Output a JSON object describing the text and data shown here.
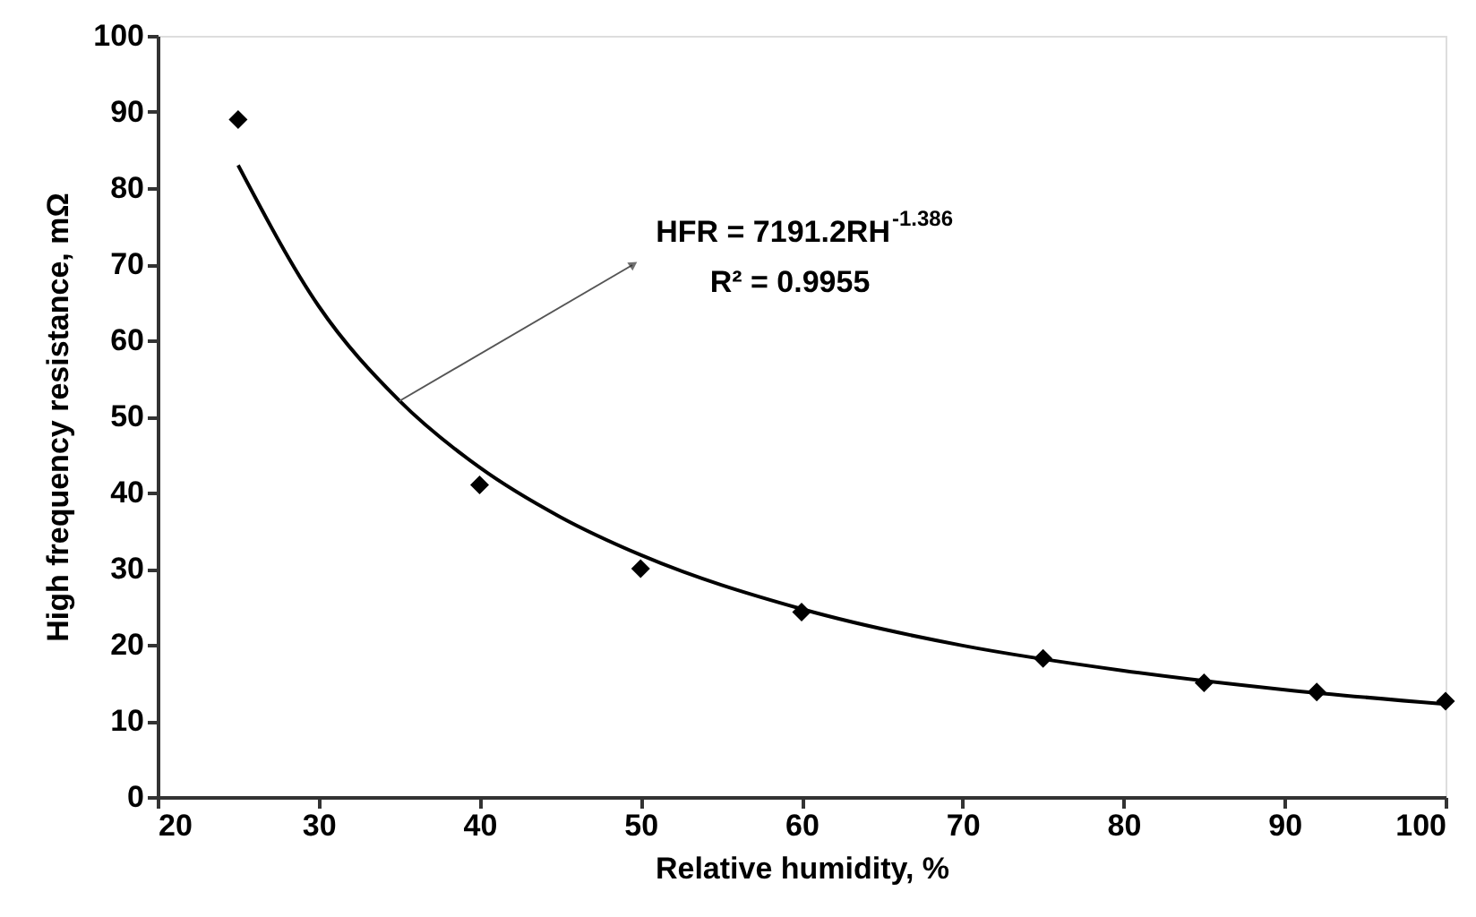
{
  "chart_data": {
    "type": "scatter",
    "xlabel": "Relative humidity, %",
    "ylabel": "High frequency resistance, mΩ",
    "xlim": [
      20,
      100
    ],
    "xticks": [
      20,
      30,
      40,
      50,
      60,
      70,
      80,
      90,
      100
    ],
    "ylim": [
      0,
      100
    ],
    "yticks": [
      0,
      10,
      20,
      30,
      40,
      50,
      60,
      70,
      80,
      90,
      100
    ],
    "grid": false,
    "series": [
      {
        "color": "#000000",
        "marker": "diamond",
        "x": [
          25,
          40,
          50,
          60,
          75,
          85,
          92,
          100
        ],
        "values": [
          89,
          41,
          30,
          24.3,
          18.2,
          15,
          13.8,
          12.6
        ]
      },
      {
        "type": "line",
        "color": "#000000",
        "line_style": "solid",
        "marker": "none",
        "x": [
          25,
          30,
          35,
          40,
          45,
          50,
          60,
          70,
          80,
          90,
          100
        ],
        "values": [
          83.0,
          64.5,
          52.1,
          43.3,
          36.8,
          31.8,
          24.7,
          19.9,
          16.6,
          14.1,
          12.2
        ]
      }
    ],
    "annotations": [
      {
        "text": "HFR = 7191.2RH$^{-1.386}$",
        "x": 35,
        "y": 52
      },
      "R² = 0.9955"
    ]
  }
}
